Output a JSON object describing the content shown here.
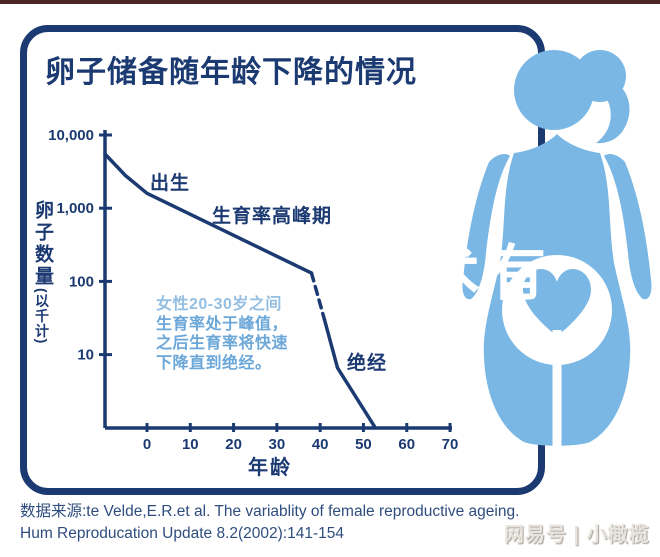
{
  "page": {
    "top_strip_color": "#4f2427"
  },
  "colors": {
    "navy": "#1c3a72",
    "figure_blue": "#7ab7e4",
    "annotation_blue": "#6ba7d8",
    "source_text": "#2e4d7e",
    "watermark_gray": "#e8e4de"
  },
  "panel": {
    "title": "卵子储备随年龄下降的情况"
  },
  "chart_data": {
    "type": "line",
    "title": "卵子储备随年龄下降的情况",
    "xlabel": "年龄",
    "ylabel_main": "卵子数量",
    "ylabel_sub": "(以千计)",
    "y_scale": "log",
    "x_range_years": [
      -10,
      70
    ],
    "y_range_thousands": [
      1,
      10000
    ],
    "grid": false,
    "x_ticks": [
      0,
      10,
      20,
      30,
      40,
      50,
      60,
      70
    ],
    "y_ticks": [
      {
        "label": "10,000",
        "value": 10000
      },
      {
        "label": "1,000",
        "value": 1000
      },
      {
        "label": "100",
        "value": 100
      },
      {
        "label": "10",
        "value": 10
      }
    ],
    "series": [
      {
        "name": "prenatal-peak-to-decline",
        "style": "solid",
        "points": [
          [
            -9.7,
            5500
          ],
          [
            -5,
            2800
          ],
          [
            0,
            1600
          ],
          [
            38,
            130
          ]
        ]
      },
      {
        "name": "rapid-decline-dashed",
        "style": "dashed",
        "points": [
          [
            38,
            130
          ],
          [
            41,
            30
          ]
        ]
      },
      {
        "name": "decline-to-menopause",
        "style": "solid",
        "points": [
          [
            41,
            30
          ],
          [
            44,
            6.6
          ],
          [
            52.5,
            1.05
          ]
        ]
      }
    ],
    "annotations": [
      {
        "id": "birth",
        "text": "出生"
      },
      {
        "id": "peak-fertility",
        "text": "生育率高峰期"
      },
      {
        "id": "menopause",
        "text": "绝经"
      }
    ],
    "note_lines": [
      "女性20-30岁之间",
      "生育率处于峰值，",
      "之后生育率将快速",
      "下降直到绝经。"
    ]
  },
  "figure": {
    "overlay_watermark": "术有"
  },
  "source": {
    "line1": "数据来源:te Velde,E.R.et al. The variablity of female reproductive ageing.",
    "line2": "Hum Reproducation Update 8.2(2002):141-154"
  },
  "watermark": {
    "text": "网易号 | 小橄榄"
  }
}
